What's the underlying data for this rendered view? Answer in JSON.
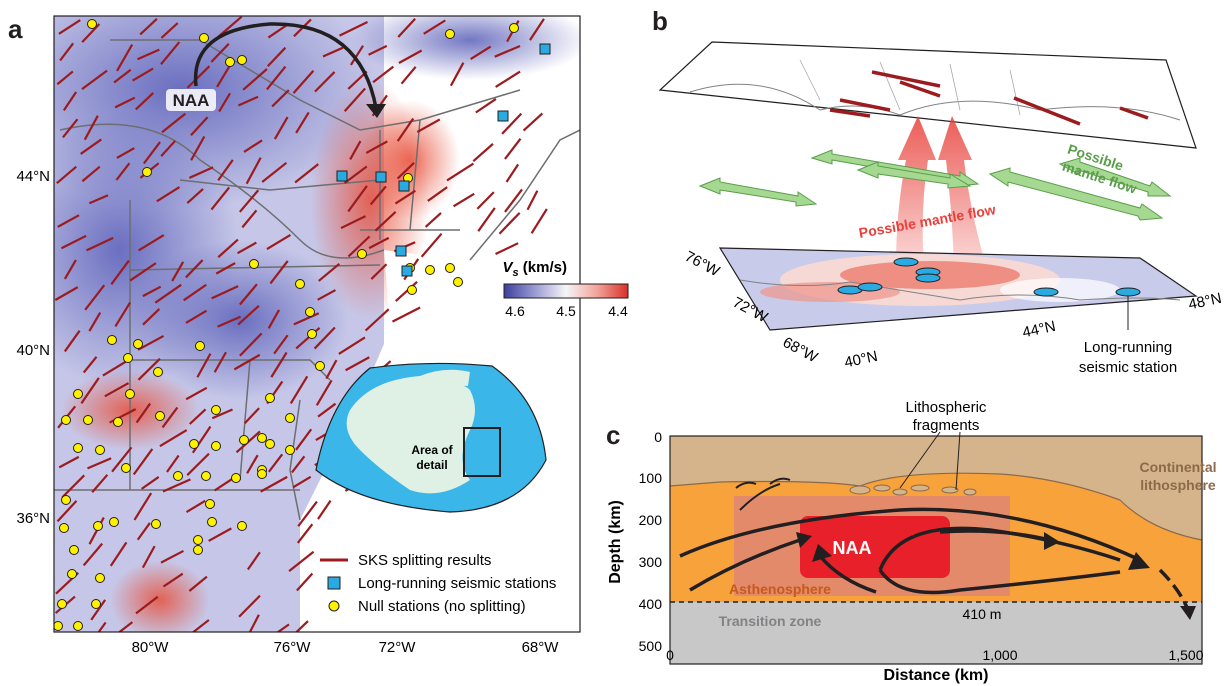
{
  "panels": {
    "a": "a",
    "b": "b",
    "c": "c"
  },
  "panel_a": {
    "lat_labels": [
      "44°N",
      "40°N",
      "36°N"
    ],
    "lon_labels": [
      "80°W",
      "76°W",
      "72°W",
      "68°W"
    ],
    "anomaly_label": "NAA",
    "colorbar": {
      "title_v": "V",
      "title_sub": "s",
      "title_unit": " (km/s)",
      "ticks": [
        "4.6",
        "4.5",
        "4.4"
      ]
    },
    "inset_label_line1": "Area of",
    "inset_label_line2": "detail",
    "legend": {
      "sks": "SKS splitting results",
      "long_running": "Long-running seismic stations",
      "null": "Null stations (no splitting)"
    },
    "colors": {
      "sks": "#9b1b1f",
      "station": "#29abe2",
      "null": "#fff200",
      "slow": "#e8503a",
      "fast": "#4a4fb0"
    }
  },
  "panel_b": {
    "flow_red": "Possible mantle flow",
    "flow_green_line1": "Possible",
    "flow_green_line2": "mantle flow",
    "lon_labels": [
      "76°W",
      "72°W",
      "68°W"
    ],
    "lat_labels": [
      "40°N",
      "44°N",
      "48°N"
    ],
    "station_label_line1": "Long-running",
    "station_label_line2": "seismic station",
    "colors": {
      "red_flow": "#e8403a",
      "green_flow": "#7fbf6a"
    }
  },
  "panel_c": {
    "title_line1": "Lithospheric",
    "title_line2": "fragments",
    "continental_line1": "Continental",
    "continental_line2": "lithosphere",
    "anomaly": "NAA",
    "asthenosphere": "Asthenosphere",
    "discontinuity": "410 m",
    "transition_zone": "Transition zone",
    "y_axis_label": "Depth (km)",
    "x_axis_label": "Distance (km)",
    "y_ticks": [
      "0",
      "100",
      "200",
      "300",
      "400",
      "500"
    ],
    "x_ticks": [
      "0",
      "1,000",
      "1,500"
    ],
    "colors": {
      "lithosphere": "#d5b48b",
      "asthenosphere": "#f7a23b",
      "transition": "#c8c8c8",
      "naa": "#e8202a"
    }
  }
}
